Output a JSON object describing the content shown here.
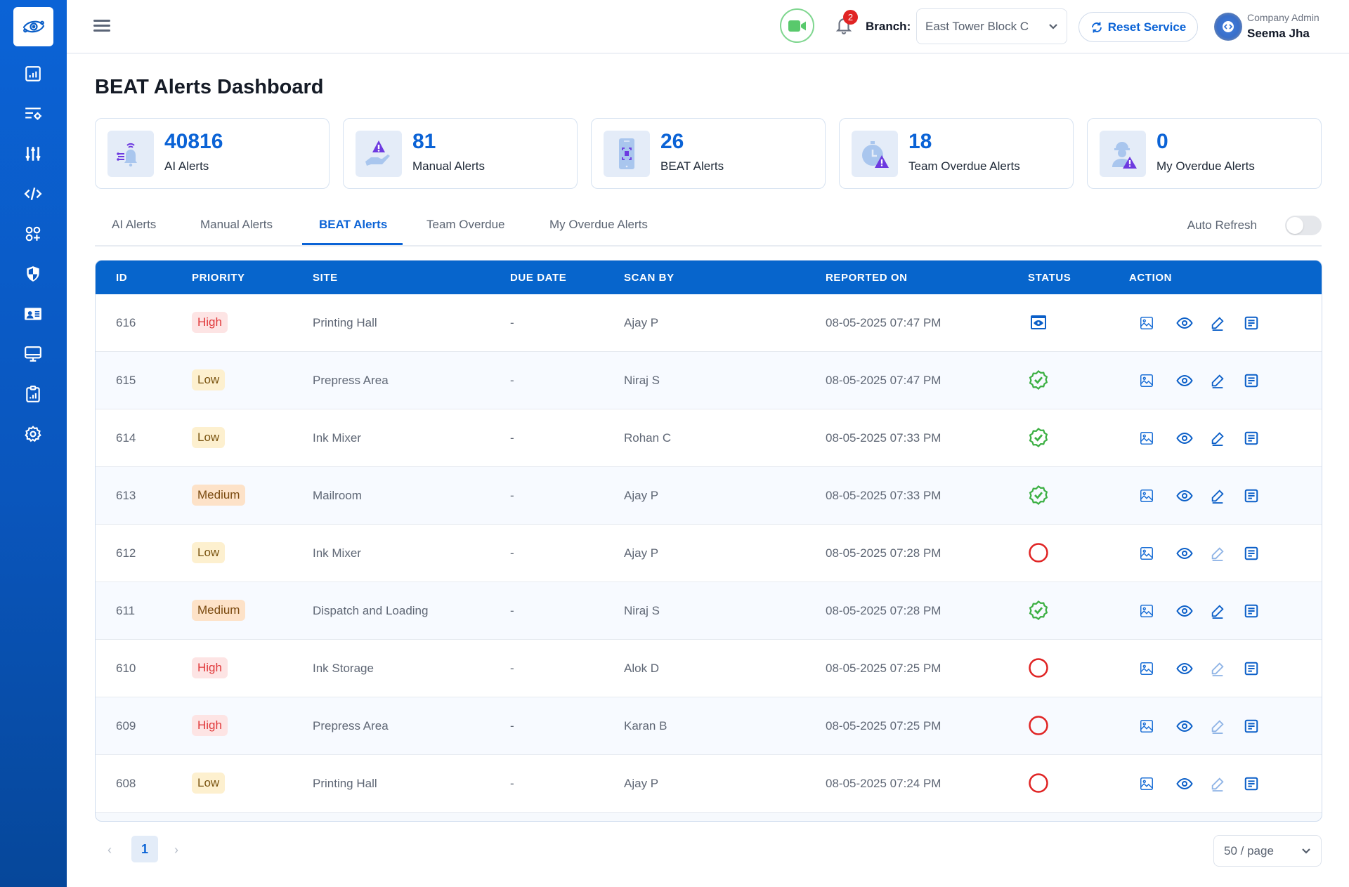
{
  "header": {
    "branch_label": "Branch:",
    "branch_value": "East Tower Block C",
    "notification_count": "2",
    "reset_label": "Reset Service",
    "user_role": "Company Admin",
    "user_name": "Seema Jha"
  },
  "sidebar": {
    "items": [
      {
        "icon": "dashboard-chart-icon"
      },
      {
        "icon": "list-settings-icon"
      },
      {
        "icon": "sliders-icon"
      },
      {
        "icon": "code-icon"
      },
      {
        "icon": "apps-add-icon"
      },
      {
        "icon": "shield-icon"
      },
      {
        "icon": "id-card-icon"
      },
      {
        "icon": "monitor-icon"
      },
      {
        "icon": "clipboard-report-icon"
      },
      {
        "icon": "gear-icon"
      }
    ]
  },
  "page": {
    "title": "BEAT Alerts Dashboard"
  },
  "stats": [
    {
      "value": "40816",
      "label": "AI Alerts"
    },
    {
      "value": "81",
      "label": "Manual Alerts"
    },
    {
      "value": "26",
      "label": "BEAT Alerts"
    },
    {
      "value": "18",
      "label": "Team Overdue Alerts"
    },
    {
      "value": "0",
      "label": "My Overdue Alerts"
    }
  ],
  "tabs": [
    {
      "label": "AI Alerts",
      "active": false
    },
    {
      "label": "Manual Alerts",
      "active": false
    },
    {
      "label": "BEAT Alerts",
      "active": true
    },
    {
      "label": "Team Overdue",
      "active": false
    },
    {
      "label": "My Overdue Alerts",
      "active": false
    }
  ],
  "auto_refresh": {
    "label": "Auto Refresh",
    "enabled": false
  },
  "table": {
    "columns": [
      "ID",
      "PRIORITY",
      "SITE",
      "DUE DATE",
      "SCAN BY",
      "REPORTED ON",
      "STATUS",
      "ACTION"
    ],
    "rows": [
      {
        "id": "616",
        "priority": "High",
        "site": "Printing Hall",
        "due": "-",
        "scan_by": "Ajay P",
        "reported": "08-05-2025 07:47 PM",
        "status": "under-review"
      },
      {
        "id": "615",
        "priority": "Low",
        "site": "Prepress Area",
        "due": "-",
        "scan_by": "Niraj S",
        "reported": "08-05-2025 07:47 PM",
        "status": "resolved"
      },
      {
        "id": "614",
        "priority": "Low",
        "site": "Ink Mixer",
        "due": "-",
        "scan_by": "Rohan C",
        "reported": "08-05-2025 07:33 PM",
        "status": "resolved"
      },
      {
        "id": "613",
        "priority": "Medium",
        "site": "Mailroom",
        "due": "-",
        "scan_by": "Ajay P",
        "reported": "08-05-2025 07:33 PM",
        "status": "resolved"
      },
      {
        "id": "612",
        "priority": "Low",
        "site": "Ink Mixer",
        "due": "-",
        "scan_by": "Ajay P",
        "reported": "08-05-2025 07:28 PM",
        "status": "pending"
      },
      {
        "id": "611",
        "priority": "Medium",
        "site": "Dispatch and Loading",
        "due": "-",
        "scan_by": "Niraj S",
        "reported": "08-05-2025 07:28 PM",
        "status": "resolved"
      },
      {
        "id": "610",
        "priority": "High",
        "site": "Ink Storage",
        "due": "-",
        "scan_by": "Alok D",
        "reported": "08-05-2025 07:25 PM",
        "status": "pending"
      },
      {
        "id": "609",
        "priority": "High",
        "site": "Prepress Area",
        "due": "-",
        "scan_by": "Karan B",
        "reported": "08-05-2025 07:25 PM",
        "status": "pending"
      },
      {
        "id": "608",
        "priority": "Low",
        "site": "Printing Hall",
        "due": "-",
        "scan_by": "Ajay P",
        "reported": "08-05-2025 07:24 PM",
        "status": "pending"
      }
    ]
  },
  "pagination": {
    "current_page": "1",
    "page_size": "50 / page"
  },
  "colors": {
    "primary": "#0b63d6",
    "table_header": "#0765cc",
    "high": "#e0383a",
    "resolved": "#3cb043",
    "pending": "#e02424"
  }
}
